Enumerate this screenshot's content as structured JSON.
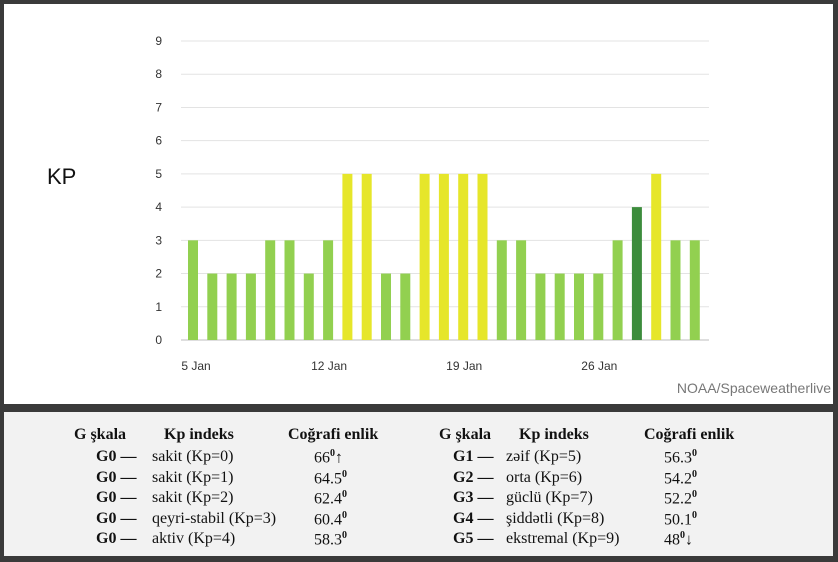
{
  "chart_data": {
    "type": "bar",
    "ylabel": "KP",
    "ylim": [
      0,
      9
    ],
    "yticks": [
      0,
      1,
      2,
      3,
      4,
      5,
      6,
      7,
      8,
      9
    ],
    "xtick_labels": [
      "5 Jan",
      "12 Jan",
      "19 Jan",
      "26 Jan"
    ],
    "xtick_indices": [
      0,
      7,
      14,
      21
    ],
    "values": [
      3,
      2,
      2,
      2,
      3,
      3,
      2,
      3,
      5,
      5,
      2,
      2,
      5,
      5,
      5,
      5,
      3,
      3,
      2,
      2,
      2,
      2,
      3,
      4,
      5,
      3,
      3
    ],
    "colors": {
      "green": "#92d050",
      "yellow": "#e6e62a",
      "dark": "#3c8c3c"
    },
    "grid": true,
    "source": "NOAA/Spaceweatherlive"
  },
  "table": {
    "left": {
      "headers": [
        "G şkala",
        "Kp indeks",
        "Coğrafi enlik"
      ],
      "rows": [
        {
          "g": "G0 —",
          "kp": "sakit (Kp=0)",
          "lat": "66",
          "sym": "↑"
        },
        {
          "g": "G0 —",
          "kp": "sakit (Kp=1)",
          "lat": "64.5",
          "sym": ""
        },
        {
          "g": "G0 —",
          "kp": "sakit (Kp=2)",
          "lat": "62.4",
          "sym": ""
        },
        {
          "g": "G0 —",
          "kp": "qeyri-stabil (Kp=3)",
          "lat": "60.4",
          "sym": ""
        },
        {
          "g": "G0 —",
          "kp": "aktiv (Kp=4)",
          "lat": "58.3",
          "sym": ""
        }
      ]
    },
    "right": {
      "headers": [
        "G şkala",
        "Kp indeks",
        "Coğrafi enlik"
      ],
      "rows": [
        {
          "g": "G1 —",
          "kp": "zəif (Kp=5)",
          "lat": "56.3",
          "sym": ""
        },
        {
          "g": "G2 —",
          "kp": "orta (Kp=6)",
          "lat": "54.2",
          "sym": ""
        },
        {
          "g": "G3 —",
          "kp": "güclü (Kp=7)",
          "lat": "52.2",
          "sym": ""
        },
        {
          "g": "G4 —",
          "kp": "şiddətli (Kp=8)",
          "lat": "50.1",
          "sym": ""
        },
        {
          "g": "G5 —",
          "kp": "ekstremal (Kp=9)",
          "lat": "48",
          "sym": "↓"
        }
      ]
    },
    "degree": "0"
  }
}
